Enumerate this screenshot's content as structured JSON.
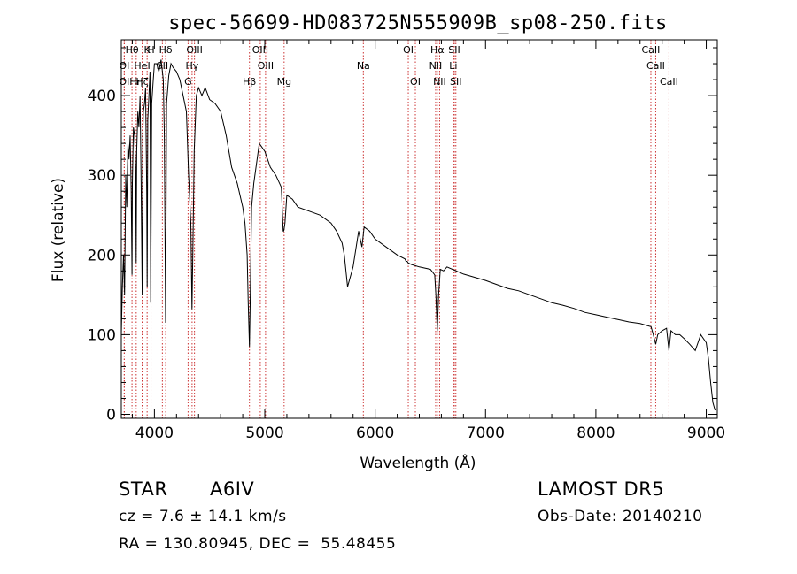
{
  "chart_data": {
    "type": "line",
    "title": "spec-56699-HD083725N555909B_sp08-250.fits",
    "xlabel": "Wavelength (Å)",
    "ylabel": "Flux (relative)",
    "xlim": [
      3700,
      9100
    ],
    "ylim": [
      -5,
      470
    ],
    "xticks": [
      4000,
      5000,
      6000,
      7000,
      8000,
      9000
    ],
    "yticks": [
      0,
      100,
      200,
      300,
      400
    ],
    "grid": false,
    "series": [
      {
        "x": [
          3700,
          3710,
          3720,
          3730,
          3740,
          3750,
          3760,
          3770,
          3780,
          3790,
          3797,
          3800,
          3810,
          3820,
          3830,
          3835,
          3840,
          3850,
          3860,
          3870,
          3880,
          3889,
          3895,
          3900,
          3910,
          3920,
          3930,
          3934,
          3940,
          3950,
          3960,
          3966,
          3975,
          3990,
          4000,
          4020,
          4040,
          4060,
          4080,
          4090,
          4101,
          4110,
          4130,
          4150,
          4170,
          4200,
          4230,
          4260,
          4290,
          4310,
          4330,
          4340,
          4350,
          4360,
          4380,
          4400,
          4430,
          4460,
          4500,
          4550,
          4600,
          4650,
          4700,
          4750,
          4800,
          4820,
          4840,
          4850,
          4861,
          4870,
          4880,
          4900,
          4950,
          5000,
          5050,
          5100,
          5150,
          5167,
          5172,
          5183,
          5200,
          5250,
          5300,
          5400,
          5500,
          5600,
          5650,
          5700,
          5720,
          5750,
          5800,
          5850,
          5880,
          5900,
          5950,
          6000,
          6100,
          6200,
          6270,
          6280,
          6290,
          6300,
          6330,
          6400,
          6500,
          6540,
          6550,
          6563,
          6575,
          6590,
          6620,
          6650,
          6700,
          6800,
          6900,
          7000,
          7100,
          7200,
          7300,
          7400,
          7500,
          7600,
          7700,
          7800,
          7900,
          8000,
          8100,
          8200,
          8300,
          8400,
          8500,
          8520,
          8542,
          8560,
          8600,
          8640,
          8662,
          8680,
          8720,
          8760,
          8800,
          8850,
          8900,
          8950,
          9000,
          9020,
          9040,
          9060,
          9080
        ],
        "values": [
          100,
          160,
          200,
          150,
          300,
          260,
          340,
          320,
          350,
          280,
          175,
          290,
          360,
          350,
          310,
          190,
          330,
          380,
          360,
          400,
          290,
          150,
          350,
          380,
          390,
          410,
          280,
          160,
          370,
          400,
          430,
          140,
          390,
          420,
          440,
          440,
          430,
          445,
          420,
          350,
          115,
          390,
          425,
          440,
          435,
          430,
          420,
          400,
          380,
          300,
          240,
          132,
          220,
          330,
          400,
          410,
          400,
          410,
          395,
          390,
          380,
          350,
          310,
          290,
          260,
          240,
          200,
          140,
          85,
          160,
          260,
          290,
          340,
          330,
          310,
          300,
          285,
          230,
          230,
          240,
          275,
          270,
          260,
          255,
          250,
          240,
          230,
          215,
          200,
          160,
          185,
          230,
          210,
          235,
          230,
          220,
          210,
          200,
          195,
          192,
          192,
          190,
          188,
          185,
          182,
          175,
          150,
          105,
          150,
          182,
          180,
          185,
          182,
          176,
          172,
          168,
          163,
          158,
          155,
          150,
          145,
          140,
          137,
          133,
          128,
          125,
          122,
          119,
          116,
          114,
          110,
          100,
          88,
          100,
          105,
          108,
          80,
          105,
          100,
          100,
          95,
          88,
          80,
          100,
          90,
          70,
          40,
          15,
          5
        ]
      }
    ],
    "lines": [
      {
        "name": "OI",
        "x": 3727,
        "row": 2
      },
      {
        "name": "OI",
        "x": 3727,
        "row": 3
      },
      {
        "name": "Hθ",
        "x": 3797,
        "row": 1
      },
      {
        "name": "Hη",
        "x": 3835,
        "row": 3
      },
      {
        "name": "HeI",
        "x": 3889,
        "row": 2
      },
      {
        "name": "K",
        "x": 3934,
        "row": 1
      },
      {
        "name": "Hζ",
        "x": 3889,
        "row": 3
      },
      {
        "name": "H",
        "x": 3969,
        "row": 1
      },
      {
        "name": "SII",
        "x": 4072,
        "row": 2
      },
      {
        "name": "Hδ",
        "x": 4102,
        "row": 1
      },
      {
        "name": "OIII",
        "x": 4363,
        "row": 1
      },
      {
        "name": "Hγ",
        "x": 4341,
        "row": 2
      },
      {
        "name": "G",
        "x": 4305,
        "row": 3
      },
      {
        "name": "OIII",
        "x": 4959,
        "row": 1
      },
      {
        "name": "OIII",
        "x": 5007,
        "row": 2
      },
      {
        "name": "Hβ",
        "x": 4861,
        "row": 3
      },
      {
        "name": "Mg",
        "x": 5175,
        "row": 3
      },
      {
        "name": "Na",
        "x": 5893,
        "row": 2
      },
      {
        "name": "OI",
        "x": 6300,
        "row": 1
      },
      {
        "name": "OI",
        "x": 6364,
        "row": 3
      },
      {
        "name": "Hα",
        "x": 6563,
        "row": 1
      },
      {
        "name": "NII",
        "x": 6548,
        "row": 2
      },
      {
        "name": "NII",
        "x": 6584,
        "row": 3
      },
      {
        "name": "SII",
        "x": 6717,
        "row": 1
      },
      {
        "name": "Li",
        "x": 6708,
        "row": 2
      },
      {
        "name": "SII",
        "x": 6731,
        "row": 3
      },
      {
        "name": "CaII",
        "x": 8498,
        "row": 1
      },
      {
        "name": "CaII",
        "x": 8542,
        "row": 2
      },
      {
        "name": "CaII",
        "x": 8662,
        "row": 3
      }
    ]
  },
  "info": {
    "object_class": "STAR",
    "subclass": "A6IV",
    "survey": "LAMOST DR5",
    "cz": "cz = 7.6 ± 14.1 km/s",
    "obs_date": "Obs-Date: 20140210",
    "coords": "RA = 130.80945, DEC =  55.48455"
  }
}
